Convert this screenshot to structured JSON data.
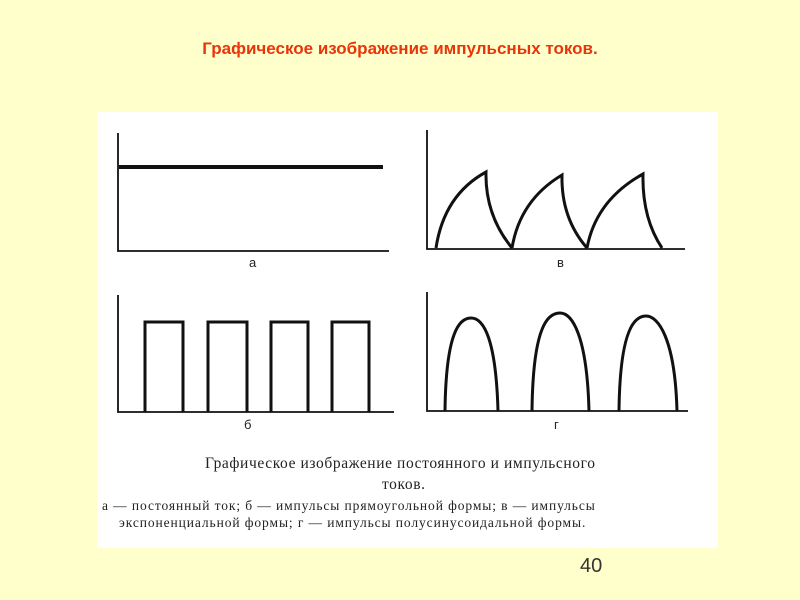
{
  "slide": {
    "title": "Графическое изображение импульсных токов.",
    "page_number": "40",
    "background_color": "#FFFFCC",
    "title_color": "#E8350A"
  },
  "figure": {
    "panels": [
      {
        "label": "а",
        "shape": "constant line"
      },
      {
        "label": "б",
        "shape": "rectangular pulses"
      },
      {
        "label": "в",
        "shape": "exponential pulses"
      },
      {
        "label": "г",
        "shape": "half-sine pulses"
      }
    ],
    "caption": {
      "title_line1": "Графическое изображение постоянного и импульсного",
      "title_line2": "токов.",
      "legend_line1": "а — постоянный ток; б — импульсы прямоугольной формы; в — импульсы",
      "legend_line2": "экспоненциальной формы; г — импульсы полусинусоидальной формы."
    }
  }
}
